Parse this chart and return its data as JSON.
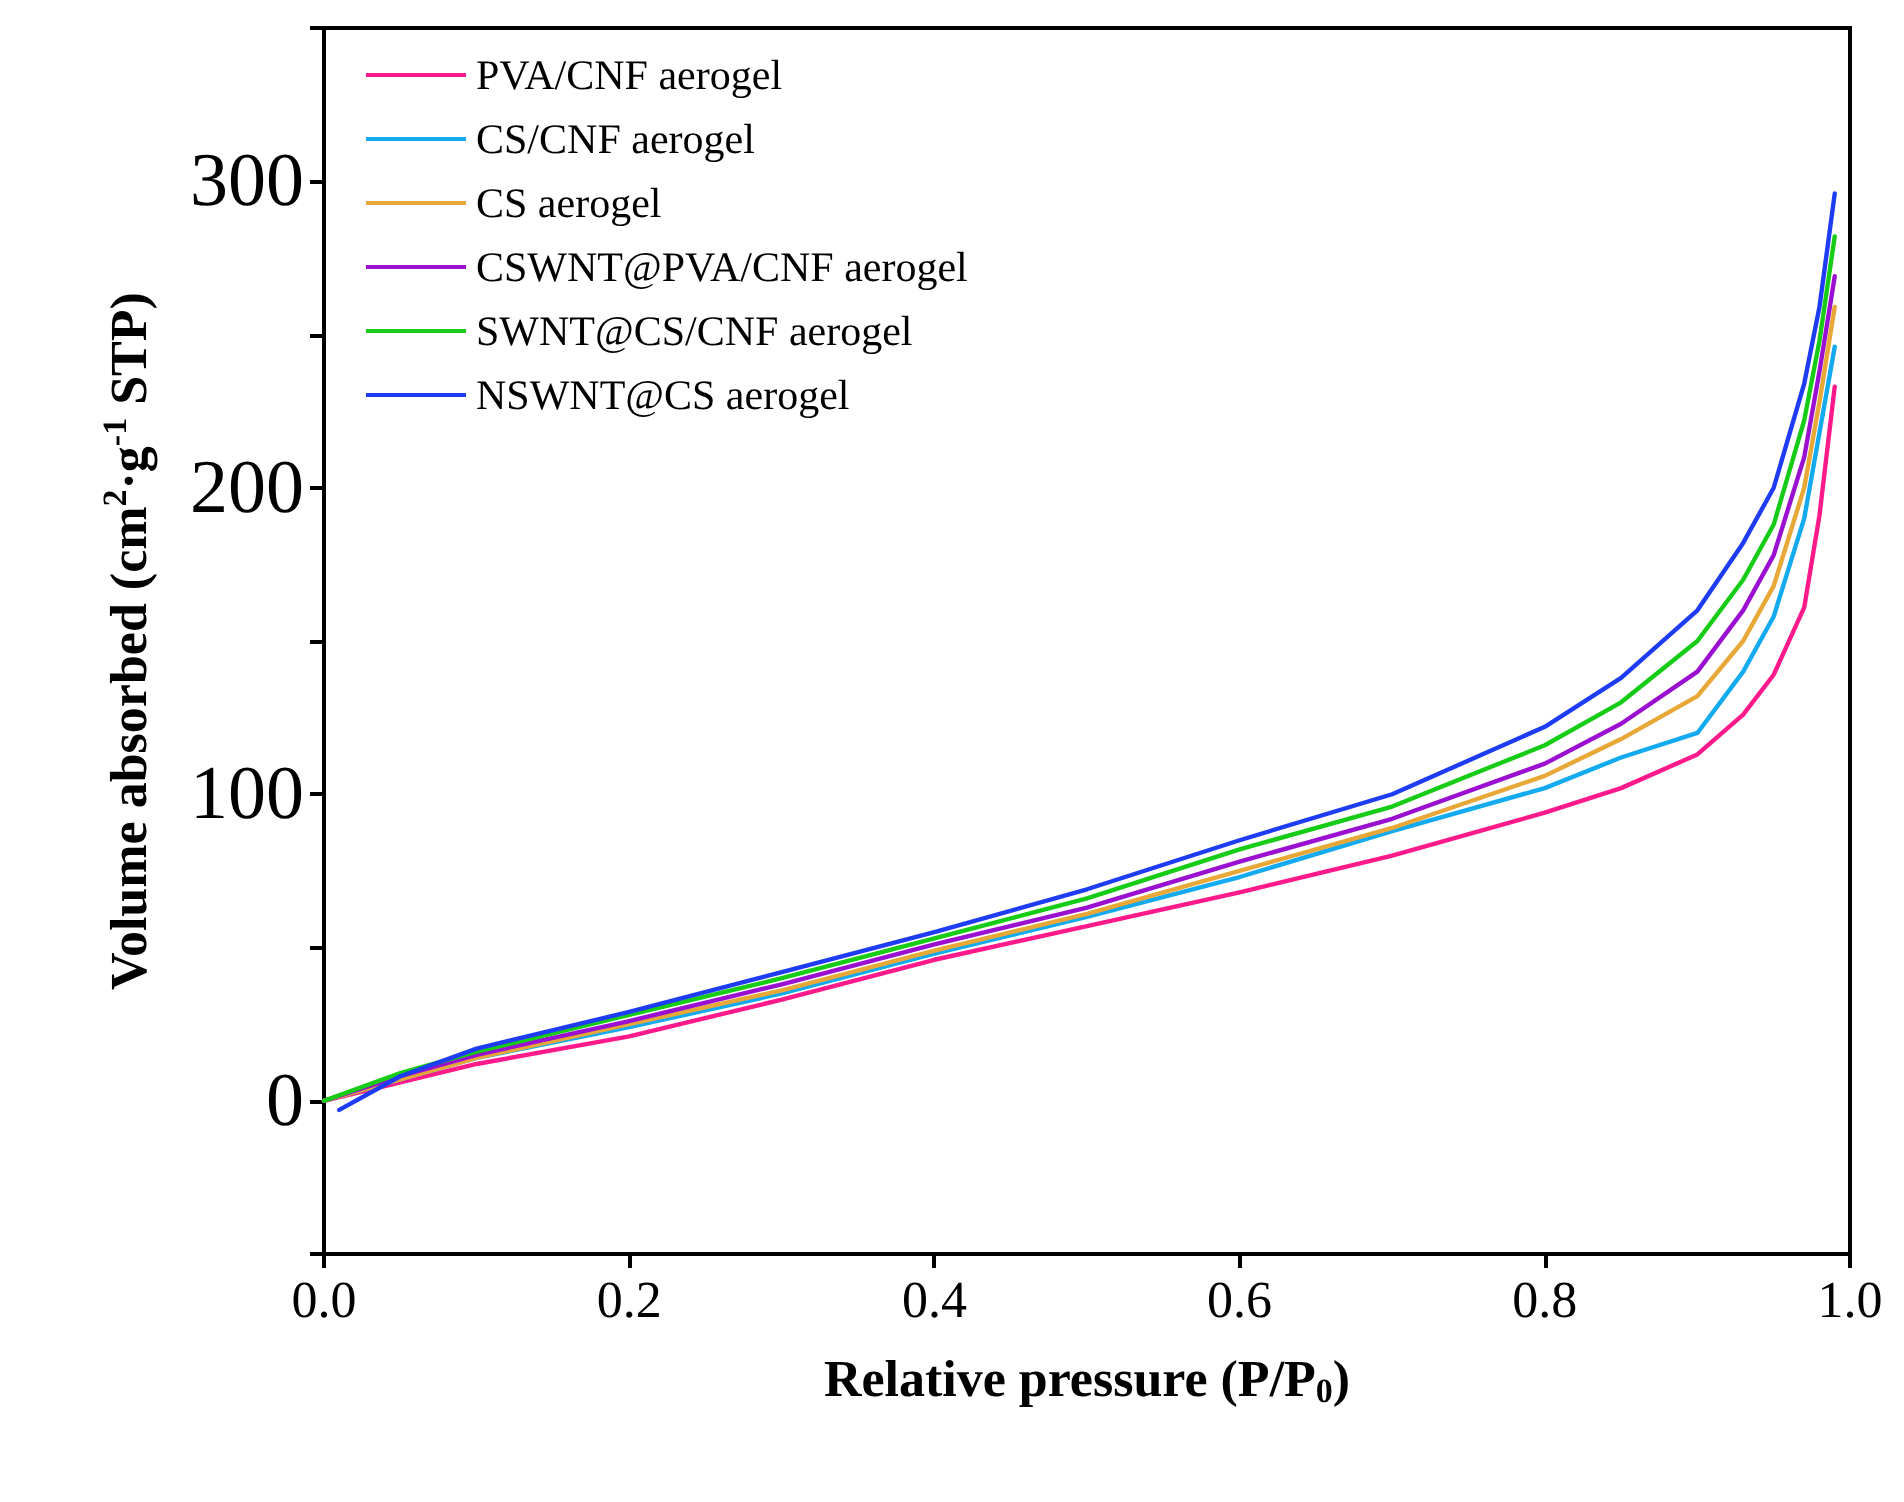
{
  "chart_data": {
    "type": "line",
    "xlabel": "Relative pressure (P/P$_{0}$)",
    "ylabel": "Volume absorbed (cm$^{2}$·g$^{-1}$ STP)",
    "x": [
      0,
      0.05,
      0.1,
      0.2,
      0.3,
      0.4,
      0.5,
      0.6,
      0.7,
      0.8,
      0.85,
      0.9,
      0.93,
      0.95,
      0.97,
      0.98,
      0.99
    ],
    "series": [
      {
        "name": "PVA/CNF aerogel",
        "color": "#ff1a8c",
        "values": [
          0,
          6,
          12,
          21,
          33,
          46,
          57,
          68,
          80,
          94,
          102,
          113,
          126,
          139,
          161,
          191,
          233
        ]
      },
      {
        "name": "CS/CNF aerogel",
        "color": "#13aaf0",
        "values": [
          0,
          7,
          14,
          24,
          35,
          48,
          60,
          73,
          88,
          102,
          112,
          120,
          140,
          158,
          190,
          218,
          246
        ]
      },
      {
        "name": "CS aerogel",
        "color": "#e8a838",
        "values": [
          0,
          7,
          14,
          25,
          36,
          49,
          61,
          75,
          89,
          106,
          118,
          132,
          150,
          168,
          200,
          228,
          259
        ]
      },
      {
        "name": "CSWNT@PVA/CNF aerogel",
        "color": "#9b10d0",
        "values": [
          0,
          8,
          15,
          26,
          38,
          51,
          63,
          78,
          92,
          110,
          123,
          140,
          160,
          178,
          210,
          238,
          269
        ]
      },
      {
        "name": "SWNT@CS/CNF aerogel",
        "color": "#17cc17",
        "values": [
          0,
          9,
          16,
          28,
          40,
          53,
          66,
          82,
          96,
          116,
          130,
          150,
          170,
          188,
          222,
          248,
          282
        ]
      },
      {
        "name": "NSWNT@CS aerogel",
        "color": "#1f3cf5",
        "x": [
          0.01,
          0.05,
          0.1,
          0.2,
          0.3,
          0.4,
          0.5,
          0.6,
          0.7,
          0.8,
          0.85,
          0.9,
          0.93,
          0.95,
          0.97,
          0.98,
          0.99
        ],
        "values": [
          -3,
          8,
          17,
          29,
          42,
          55,
          69,
          85,
          100,
          122,
          138,
          160,
          182,
          200,
          234,
          259,
          296
        ]
      }
    ],
    "xlim": [
      0,
      1.0
    ],
    "xticks": [
      {
        "value": 0,
        "label": "0.0"
      },
      0.2,
      0.4,
      0.6,
      0.8,
      {
        "value": 1.0,
        "label": "1.0"
      }
    ],
    "ylim": [
      -50,
      350
    ],
    "yticks": [
      {
        "value": -50,
        "label": null
      },
      0,
      {
        "value": 50,
        "label": null
      },
      100,
      {
        "value": 150,
        "label": null
      },
      200,
      {
        "value": 250,
        "label": null
      },
      300,
      {
        "value": 350,
        "label": null
      }
    ],
    "legend": "top left",
    "grid": false,
    "marker": "none",
    "line_style": "solid"
  }
}
